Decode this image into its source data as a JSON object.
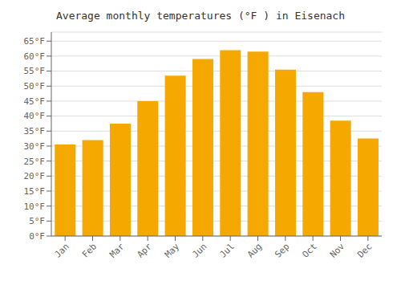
{
  "chart_data": {
    "type": "bar",
    "title": "Average monthly temperatures (°F ) in Eisenach",
    "categories": [
      "Jan",
      "Feb",
      "Mar",
      "Apr",
      "May",
      "Jun",
      "Jul",
      "Aug",
      "Sep",
      "Oct",
      "Nov",
      "Dec"
    ],
    "values": [
      30.5,
      32.0,
      37.5,
      45.0,
      53.5,
      59.0,
      62.0,
      61.5,
      55.5,
      48.0,
      38.5,
      32.5
    ],
    "color": "#F5A800",
    "ylim": [
      0,
      68
    ],
    "yticks": [
      {
        "value": 0,
        "label": "0°F"
      },
      {
        "value": 5,
        "label": "5°F"
      },
      {
        "value": 10,
        "label": "10°F"
      },
      {
        "value": 15,
        "label": "15°F"
      },
      {
        "value": 20,
        "label": "20°F"
      },
      {
        "value": 25,
        "label": "25°F"
      },
      {
        "value": 30,
        "label": "30°F"
      },
      {
        "value": 35,
        "label": "35°F"
      },
      {
        "value": 40,
        "label": "40°F"
      },
      {
        "value": 45,
        "label": "45°F"
      },
      {
        "value": 50,
        "label": "50°F"
      },
      {
        "value": 55,
        "label": "55°F"
      },
      {
        "value": 60,
        "label": "60°F"
      },
      {
        "value": 65,
        "label": "65°F"
      }
    ],
    "grid": true
  }
}
